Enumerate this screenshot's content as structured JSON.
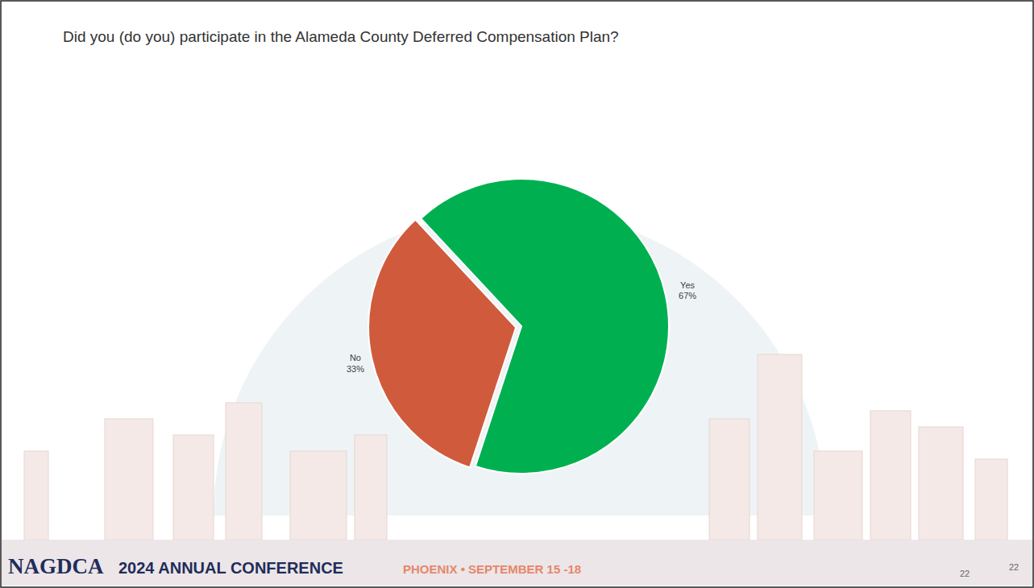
{
  "chart_data": {
    "type": "pie",
    "title": "Did you (do you) participate in the Alameda County Deferred Compensation Plan?",
    "categories": [
      "Yes",
      "No"
    ],
    "values": [
      67,
      33
    ],
    "value_labels": [
      "67%",
      "33%"
    ],
    "colors": [
      "#00b050",
      "#d05a3c"
    ],
    "data_labels": true
  },
  "footer": {
    "brand": "NAGDCA",
    "event": "2024 ANNUAL CONFERENCE",
    "location": "PHOENIX • SEPTEMBER 15 -18",
    "page_numbers": [
      22,
      22
    ]
  }
}
